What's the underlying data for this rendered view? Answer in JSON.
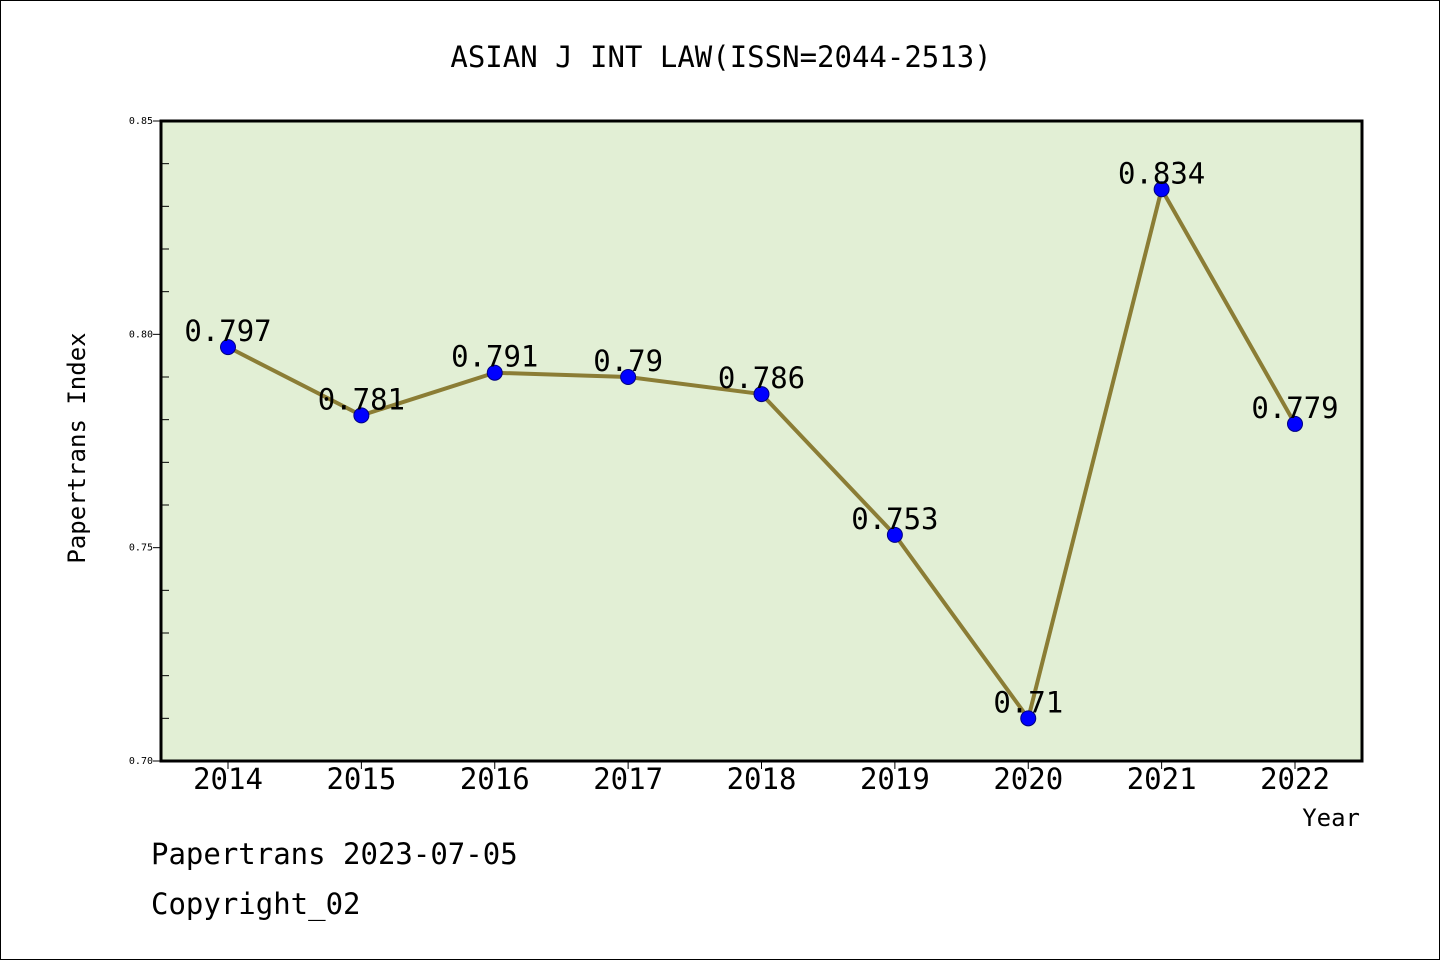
{
  "chart_data": {
    "type": "line",
    "title": "ASIAN J INT LAW(ISSN=2044-2513)",
    "xlabel": "Year",
    "ylabel": "Papertrans Index",
    "categories": [
      "2014",
      "2015",
      "2016",
      "2017",
      "2018",
      "2019",
      "2020",
      "2021",
      "2022"
    ],
    "series": [
      {
        "values": [
          0.797,
          0.781,
          0.791,
          0.79,
          0.786,
          0.753,
          0.71,
          0.834,
          0.779
        ],
        "labels": [
          "0.797",
          "0.781",
          "0.791",
          "0.79",
          "0.786",
          "0.753",
          "0.71",
          "0.834",
          "0.779"
        ]
      }
    ],
    "ylim": [
      0.7,
      0.85
    ],
    "yticks": [
      "0.70",
      "0.75",
      "0.80",
      "0.85"
    ],
    "grid": false,
    "colors": {
      "plot_background": "#e2efd5",
      "line": "#8b7d35",
      "marker": "#0000ff"
    }
  },
  "footer": {
    "line1": "Papertrans 2023-07-05",
    "line2": "Copyright_02"
  }
}
